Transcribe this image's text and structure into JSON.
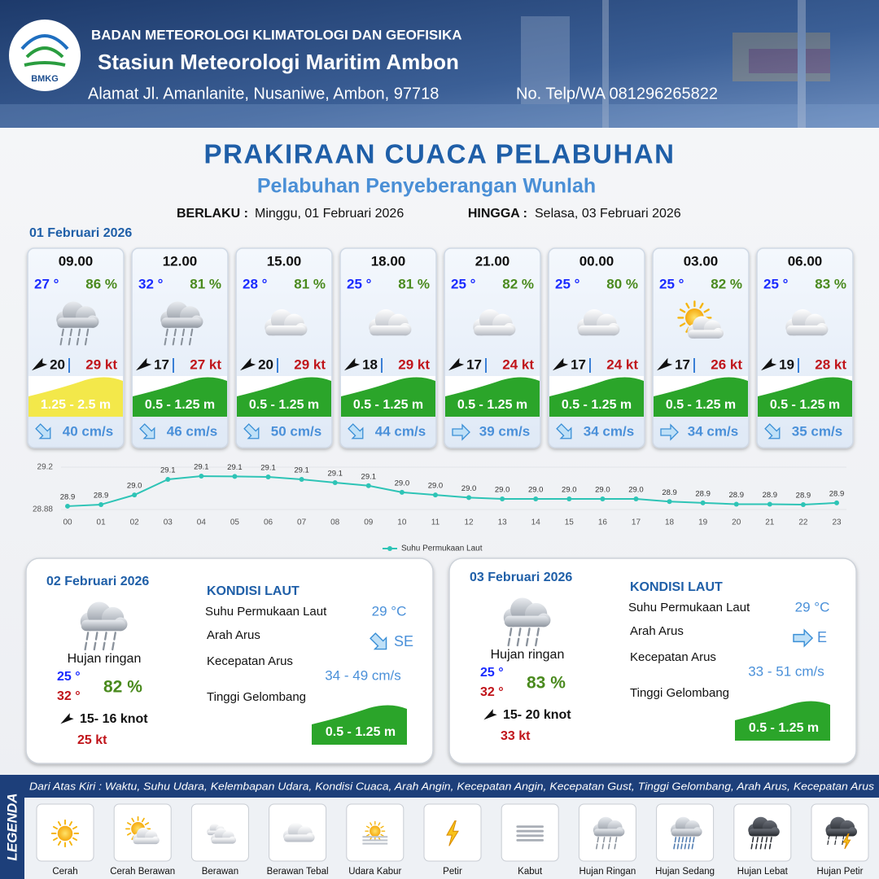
{
  "header": {
    "logo": "BMKG",
    "org": "BADAN METEOROLOGI KLIMATOLOGI DAN GEOFISIKA",
    "station": "Stasiun Meteorologi Maritim Ambon",
    "address": "Alamat Jl. Amanlanite, Nusaniwe, Ambon, 97718",
    "phone": "No. Telp/WA  081296265822"
  },
  "title": "PRAKIRAAN CUACA PELABUHAN",
  "subtitle": "Pelabuhan Penyeberangan Wunlah",
  "validity": {
    "from_label": "BERLAKU :",
    "from": "Minggu, 01 Februari 2026",
    "to_label": "HINGGA :",
    "to": "Selasa, 03 Februari 2026"
  },
  "day1": {
    "date": "01 Februari 2026",
    "slots": [
      {
        "time": "09.00",
        "temp": "27 °",
        "humidity": "86 %",
        "wind": "20",
        "gust": "29 kt",
        "wave": "1.25 - 2.5 m",
        "current": "40 cm/s"
      },
      {
        "time": "12.00",
        "temp": "32 °",
        "humidity": "81 %",
        "wind": "17",
        "gust": "27 kt",
        "wave": "0.5 - 1.25 m",
        "current": "46 cm/s"
      },
      {
        "time": "15.00",
        "temp": "28 °",
        "humidity": "81 %",
        "wind": "20",
        "gust": "29 kt",
        "wave": "0.5 - 1.25 m",
        "current": "50 cm/s"
      },
      {
        "time": "18.00",
        "temp": "25 °",
        "humidity": "81 %",
        "wind": "18",
        "gust": "29 kt",
        "wave": "0.5 - 1.25 m",
        "current": "44 cm/s"
      },
      {
        "time": "21.00",
        "temp": "25 °",
        "humidity": "82 %",
        "wind": "17",
        "gust": "24 kt",
        "wave": "0.5 - 1.25 m",
        "current": "39 cm/s"
      },
      {
        "time": "00.00",
        "temp": "25 °",
        "humidity": "80 %",
        "wind": "17",
        "gust": "24 kt",
        "wave": "0.5 - 1.25 m",
        "current": "34 cm/s"
      },
      {
        "time": "03.00",
        "temp": "25 °",
        "humidity": "82 %",
        "wind": "17",
        "gust": "26 kt",
        "wave": "0.5 - 1.25 m",
        "current": "34 cm/s"
      },
      {
        "time": "06.00",
        "temp": "25 °",
        "humidity": "83 %",
        "wind": "19",
        "gust": "28 kt",
        "wave": "0.5 - 1.25 m",
        "current": "35 cm/s"
      }
    ]
  },
  "chart_data": {
    "type": "line",
    "categories": [
      "00",
      "01",
      "02",
      "03",
      "04",
      "05",
      "06",
      "07",
      "08",
      "09",
      "10",
      "11",
      "12",
      "13",
      "14",
      "15",
      "16",
      "17",
      "18",
      "19",
      "20",
      "21",
      "22",
      "23"
    ],
    "series": [
      {
        "name": "Suhu Permukaan Laut",
        "color": "#2ec4b6",
        "values": [
          28.905,
          28.917,
          28.99,
          29.108,
          29.132,
          29.13,
          29.126,
          29.108,
          29.083,
          29.06,
          29.01,
          28.99,
          28.97,
          28.96,
          28.96,
          28.96,
          28.96,
          28.96,
          28.94,
          28.93,
          28.92,
          28.92,
          28.917,
          28.93
        ],
        "value_labels": [
          "28.9",
          "28.9",
          "29.0",
          "29.1",
          "29.1",
          "29.1",
          "29.1",
          "29.1",
          "29.1",
          "29.1",
          "29.0",
          "29.0",
          "29.0",
          "29.0",
          "29.0",
          "29.0",
          "29.0",
          "29.0",
          "28.9",
          "28.9",
          "28.9",
          "28.9",
          "28.9",
          "28.9"
        ]
      }
    ],
    "ylim": [
      28.88,
      29.2
    ],
    "yticks": [
      28.88,
      29.2
    ],
    "grid": true,
    "legend": "bottom"
  },
  "days": [
    {
      "date": "02 Februari 2026",
      "condition": "Hujan ringan",
      "temp_min": "25 °",
      "temp_max": "32 °",
      "humidity": "82 %",
      "wind": "15- 16 knot",
      "gust": "25 kt",
      "heading": "KONDISI LAUT",
      "sst_label": "Suhu Permukaan Laut",
      "sst": "29 °C",
      "dir_label": "Arah Arus",
      "dir": "SE",
      "speed_label": "Kecepatan Arus",
      "speed": "34 - 49 cm/s",
      "wave_label": "Tinggi Gelombang",
      "wave": "0.5 - 1.25 m"
    },
    {
      "date": "03 Februari 2026",
      "condition": "Hujan ringan",
      "temp_min": "25 °",
      "temp_max": "32 °",
      "humidity": "83 %",
      "wind": "15- 20 knot",
      "gust": "33 kt",
      "heading": "KONDISI LAUT",
      "sst_label": "Suhu Permukaan Laut",
      "sst": "29 °C",
      "dir_label": "Arah Arus",
      "dir": "E",
      "speed_label": "Kecepatan Arus",
      "speed": "33 - 51 cm/s",
      "wave_label": "Tinggi Gelombang",
      "wave": "0.5 - 1.25 m"
    }
  ],
  "legend": {
    "title": "LEGENDA",
    "description": "Dari Atas Kiri : Waktu, Suhu Udara, Kelembapan Udara, Kondisi Cuaca, Arah Angin, Kecepatan Angin, Kecepatan Gust, Tinggi Gelombang, Arah Arus, Kecepatan Arus",
    "items": [
      "Cerah",
      "Cerah Berawan",
      "Berawan",
      "Berawan Tebal",
      "Udara Kabur",
      "Petir",
      "Kabut",
      "Hujan Ringan",
      "Hujan Sedang",
      "Hujan Lebat",
      "Hujan Petir"
    ]
  }
}
